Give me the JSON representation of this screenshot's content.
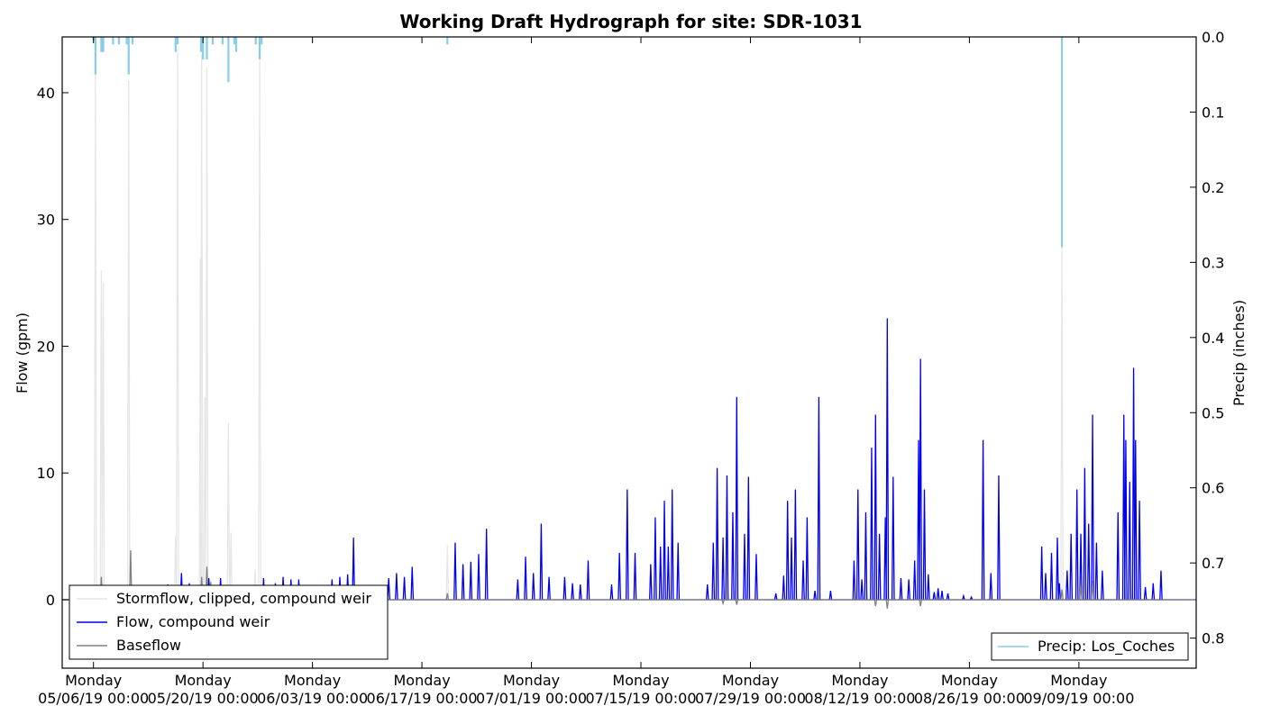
{
  "chart_data": {
    "type": "line",
    "title": "Working Draft Hydrograph for site: SDR-1031",
    "xlabel": "",
    "ylabel_left": "Flow (gpm)",
    "ylabel_right": "Precip (inches)",
    "x_range_days": [
      "2019-05-02",
      "2019-09-24"
    ],
    "x_ticks": [
      {
        "date": "2019-05-06",
        "label_top": "Monday",
        "label_bottom": "05/06/19 00:00"
      },
      {
        "date": "2019-05-20",
        "label_top": "Monday",
        "label_bottom": "05/20/19 00:00"
      },
      {
        "date": "2019-06-03",
        "label_top": "Monday",
        "label_bottom": "06/03/19 00:00"
      },
      {
        "date": "2019-06-17",
        "label_top": "Monday",
        "label_bottom": "06/17/19 00:00"
      },
      {
        "date": "2019-07-01",
        "label_top": "Monday",
        "label_bottom": "07/01/19 00:00"
      },
      {
        "date": "2019-07-15",
        "label_top": "Monday",
        "label_bottom": "07/15/19 00:00"
      },
      {
        "date": "2019-07-29",
        "label_top": "Monday",
        "label_bottom": "07/29/19 00:00"
      },
      {
        "date": "2019-08-12",
        "label_top": "Monday",
        "label_bottom": "08/12/19 00:00"
      },
      {
        "date": "2019-08-26",
        "label_top": "Monday",
        "label_bottom": "08/26/19 00:00"
      },
      {
        "date": "2019-09-09",
        "label_top": "Monday",
        "label_bottom": "09/09/19 00:00"
      }
    ],
    "y_left": {
      "ylim": [
        -5.4,
        44.4
      ],
      "ticks": [
        0,
        10,
        20,
        30,
        40
      ],
      "tick_labels": [
        "0",
        "10",
        "20",
        "30",
        "40"
      ]
    },
    "y_right": {
      "ylim": [
        0.84,
        0.0
      ],
      "inverted": true,
      "ticks": [
        0.0,
        0.1,
        0.2,
        0.3,
        0.4,
        0.5,
        0.6,
        0.7,
        0.8
      ],
      "tick_labels": [
        "0.0",
        "0.1",
        "0.2",
        "0.3",
        "0.4",
        "0.5",
        "0.6",
        "0.7",
        "0.8"
      ]
    },
    "legend_left": {
      "placement": "lower-left",
      "entries": [
        {
          "label": "Stormflow, clipped, compound weir",
          "color": "#e6e6e6"
        },
        {
          "label": "Flow, compound weir",
          "color": "#0000ee"
        },
        {
          "label": "Baseflow",
          "color": "#808080"
        }
      ]
    },
    "legend_right": {
      "placement": "lower-right",
      "entries": [
        {
          "label": "Precip: Los_Coches",
          "color": "#87cde6"
        }
      ]
    },
    "series": [
      {
        "key": "stormflow",
        "axis": "left",
        "color": "#e6e6e6",
        "spikes": [
          [
            "2019-05-06T06:00",
            41.5
          ],
          [
            "2019-05-07T00:00",
            26.0
          ],
          [
            "2019-05-07T06:00",
            25.0
          ],
          [
            "2019-05-10T12:00",
            41.0
          ],
          [
            "2019-05-16T12:00",
            5.0
          ],
          [
            "2019-05-16T18:00",
            43.5
          ],
          [
            "2019-05-19T16:00",
            27.0
          ],
          [
            "2019-05-19T20:00",
            43.0
          ],
          [
            "2019-05-20T06:00",
            16.0
          ],
          [
            "2019-05-20T12:00",
            42.0
          ],
          [
            "2019-05-23T06:00",
            14.0
          ],
          [
            "2019-05-23T14:00",
            5.3
          ],
          [
            "2019-05-26T16:00",
            2.4
          ],
          [
            "2019-05-27T06:00",
            42.5
          ],
          [
            "2019-06-20T06:00",
            4.3
          ],
          [
            "2019-09-06T20:00",
            28.0
          ]
        ]
      },
      {
        "key": "flow",
        "axis": "left",
        "color": "#0000ee",
        "spikes": [
          [
            "2019-05-15T12:00",
            1.2
          ],
          [
            "2019-05-16T12:00",
            1.1
          ],
          [
            "2019-05-17T06:00",
            2.1
          ],
          [
            "2019-05-18T06:00",
            1.3
          ],
          [
            "2019-05-20T18:00",
            1.7
          ],
          [
            "2019-05-22T06:00",
            1.7
          ],
          [
            "2019-05-27T18:00",
            1.7
          ],
          [
            "2019-05-29T06:00",
            1.3
          ],
          [
            "2019-05-30T06:00",
            1.8
          ],
          [
            "2019-05-31T06:00",
            1.6
          ],
          [
            "2019-06-01T06:00",
            1.6
          ],
          [
            "2019-06-05T12:00",
            1.6
          ],
          [
            "2019-06-06T12:00",
            1.8
          ],
          [
            "2019-06-07T12:00",
            2.0
          ],
          [
            "2019-06-08T06:00",
            4.9
          ],
          [
            "2019-06-12T18:00",
            1.7
          ],
          [
            "2019-06-13T18:00",
            2.1
          ],
          [
            "2019-06-14T18:00",
            1.8
          ],
          [
            "2019-06-15T18:00",
            2.6
          ],
          [
            "2019-06-21T06:00",
            4.5
          ],
          [
            "2019-06-22T06:00",
            2.8
          ],
          [
            "2019-06-23T06:00",
            3.0
          ],
          [
            "2019-06-24T06:00",
            3.6
          ],
          [
            "2019-06-25T06:00",
            5.6
          ],
          [
            "2019-06-29T06:00",
            1.6
          ],
          [
            "2019-06-30T06:00",
            3.4
          ],
          [
            "2019-07-01T06:00",
            2.1
          ],
          [
            "2019-07-02T06:00",
            6.0
          ],
          [
            "2019-07-03T06:00",
            1.8
          ],
          [
            "2019-07-05T06:00",
            1.8
          ],
          [
            "2019-07-06T06:00",
            1.3
          ],
          [
            "2019-07-07T06:00",
            1.2
          ],
          [
            "2019-07-08T06:00",
            3.1
          ],
          [
            "2019-07-11T06:00",
            1.2
          ],
          [
            "2019-07-12T06:00",
            3.7
          ],
          [
            "2019-07-13T06:00",
            8.7
          ],
          [
            "2019-07-14T06:00",
            3.7
          ],
          [
            "2019-07-16T06:00",
            2.8
          ],
          [
            "2019-07-16T20:00",
            6.5
          ],
          [
            "2019-07-17T12:00",
            4.2
          ],
          [
            "2019-07-18T00:00",
            7.8
          ],
          [
            "2019-07-18T12:00",
            4.2
          ],
          [
            "2019-07-19T00:00",
            8.7
          ],
          [
            "2019-07-19T18:00",
            4.5
          ],
          [
            "2019-07-23T12:00",
            1.2
          ],
          [
            "2019-07-24T06:00",
            4.5
          ],
          [
            "2019-07-24T18:00",
            10.4
          ],
          [
            "2019-07-25T12:00",
            4.9
          ],
          [
            "2019-07-26T00:00",
            9.8
          ],
          [
            "2019-07-26T18:00",
            6.9
          ],
          [
            "2019-07-27T06:00",
            16.0
          ],
          [
            "2019-07-28T06:00",
            5.2
          ],
          [
            "2019-07-28T18:00",
            9.7
          ],
          [
            "2019-07-29T18:00",
            3.6
          ],
          [
            "2019-08-01T06:00",
            0.5
          ],
          [
            "2019-08-02T06:00",
            1.9
          ],
          [
            "2019-08-02T18:00",
            7.8
          ],
          [
            "2019-08-03T06:00",
            4.9
          ],
          [
            "2019-08-03T18:00",
            8.7
          ],
          [
            "2019-08-04T18:00",
            3.1
          ],
          [
            "2019-08-05T06:00",
            6.5
          ],
          [
            "2019-08-06T06:00",
            0.7
          ],
          [
            "2019-08-06T18:00",
            16.0
          ],
          [
            "2019-08-08T06:00",
            0.7
          ],
          [
            "2019-08-11T06:00",
            3.1
          ],
          [
            "2019-08-11T18:00",
            8.7
          ],
          [
            "2019-08-12T06:00",
            1.6
          ],
          [
            "2019-08-12T18:00",
            6.9
          ],
          [
            "2019-08-13T12:00",
            12.0
          ],
          [
            "2019-08-14T00:00",
            14.6
          ],
          [
            "2019-08-14T12:00",
            5.2
          ],
          [
            "2019-08-15T06:00",
            6.5
          ],
          [
            "2019-08-15T12:00",
            22.2
          ],
          [
            "2019-08-16T06:00",
            9.7
          ],
          [
            "2019-08-17T06:00",
            1.7
          ],
          [
            "2019-08-18T06:00",
            1.6
          ],
          [
            "2019-08-19T00:00",
            3.1
          ],
          [
            "2019-08-19T12:00",
            12.6
          ],
          [
            "2019-08-19T18:00",
            19.0
          ],
          [
            "2019-08-20T06:00",
            8.7
          ],
          [
            "2019-08-20T18:00",
            2.0
          ],
          [
            "2019-08-21T12:00",
            0.6
          ],
          [
            "2019-08-22T00:00",
            0.9
          ],
          [
            "2019-08-22T12:00",
            0.7
          ],
          [
            "2019-08-23T06:00",
            0.5
          ],
          [
            "2019-08-25T06:00",
            0.3
          ],
          [
            "2019-08-26T06:00",
            0.2
          ],
          [
            "2019-08-27T18:00",
            12.6
          ],
          [
            "2019-08-28T18:00",
            2.1
          ],
          [
            "2019-08-29T18:00",
            9.8
          ],
          [
            "2019-09-04T06:00",
            4.2
          ],
          [
            "2019-09-04T18:00",
            2.1
          ],
          [
            "2019-09-05T12:00",
            3.7
          ],
          [
            "2019-09-06T06:00",
            4.9
          ],
          [
            "2019-09-06T12:00",
            1.3
          ],
          [
            "2019-09-07T12:00",
            2.3
          ],
          [
            "2019-09-08T00:00",
            5.2
          ],
          [
            "2019-09-08T18:00",
            8.7
          ],
          [
            "2019-09-09T06:00",
            5.2
          ],
          [
            "2019-09-09T18:00",
            10.4
          ],
          [
            "2019-09-10T06:00",
            6.0
          ],
          [
            "2019-09-10T18:00",
            14.6
          ],
          [
            "2019-09-11T06:00",
            4.5
          ],
          [
            "2019-09-12T00:00",
            2.3
          ],
          [
            "2019-09-14T00:00",
            6.9
          ],
          [
            "2019-09-14T18:00",
            14.6
          ],
          [
            "2019-09-15T00:00",
            12.6
          ],
          [
            "2019-09-15T12:00",
            9.3
          ],
          [
            "2019-09-16T00:00",
            18.3
          ],
          [
            "2019-09-16T06:00",
            12.6
          ],
          [
            "2019-09-16T18:00",
            7.8
          ],
          [
            "2019-09-17T12:00",
            1.0
          ],
          [
            "2019-09-18T12:00",
            1.3
          ],
          [
            "2019-09-19T12:00",
            2.3
          ]
        ]
      },
      {
        "key": "baseflow",
        "axis": "left",
        "color": "#808080",
        "spikes": [
          [
            "2019-05-07T00:00",
            1.8
          ],
          [
            "2019-05-10T18:00",
            3.9
          ],
          [
            "2019-05-19T20:00",
            1.8
          ],
          [
            "2019-05-20T12:00",
            2.6
          ],
          [
            "2019-05-21T00:00",
            1.4
          ],
          [
            "2019-06-20T06:00",
            0.5
          ],
          [
            "2019-07-25T12:00",
            -0.3
          ],
          [
            "2019-07-27T06:00",
            -0.4
          ],
          [
            "2019-08-14T00:00",
            -0.5
          ],
          [
            "2019-08-15T12:00",
            -0.7
          ],
          [
            "2019-08-19T18:00",
            -0.5
          ],
          [
            "2019-09-06T20:00",
            0.8
          ],
          [
            "2019-09-09T06:00",
            1.2
          ],
          [
            "2019-09-10T18:00",
            1.5
          ]
        ]
      },
      {
        "key": "precip",
        "axis": "right",
        "color": "#87cde6",
        "bars": [
          [
            "2019-05-06T00:00",
            0.005
          ],
          [
            "2019-05-06T06:00",
            0.05
          ],
          [
            "2019-05-07T00:00",
            0.02
          ],
          [
            "2019-05-07T06:00",
            0.02
          ],
          [
            "2019-05-08T12:00",
            0.01
          ],
          [
            "2019-05-09T06:00",
            0.01
          ],
          [
            "2019-05-10T06:00",
            0.01
          ],
          [
            "2019-05-10T12:00",
            0.05
          ],
          [
            "2019-05-11T00:00",
            0.01
          ],
          [
            "2019-05-16T12:00",
            0.02
          ],
          [
            "2019-05-16T18:00",
            0.01
          ],
          [
            "2019-05-19T18:00",
            0.02
          ],
          [
            "2019-05-20T00:00",
            0.03
          ],
          [
            "2019-05-20T12:00",
            0.03
          ],
          [
            "2019-05-21T06:00",
            0.01
          ],
          [
            "2019-05-22T12:00",
            0.01
          ],
          [
            "2019-05-23T06:00",
            0.06
          ],
          [
            "2019-05-24T00:00",
            0.01
          ],
          [
            "2019-05-24T06:00",
            0.02
          ],
          [
            "2019-05-26T18:00",
            0.01
          ],
          [
            "2019-05-27T06:00",
            0.03
          ],
          [
            "2019-05-27T12:00",
            0.01
          ],
          [
            "2019-06-20T06:00",
            0.01
          ],
          [
            "2019-09-06T20:00",
            0.28
          ]
        ]
      }
    ]
  }
}
